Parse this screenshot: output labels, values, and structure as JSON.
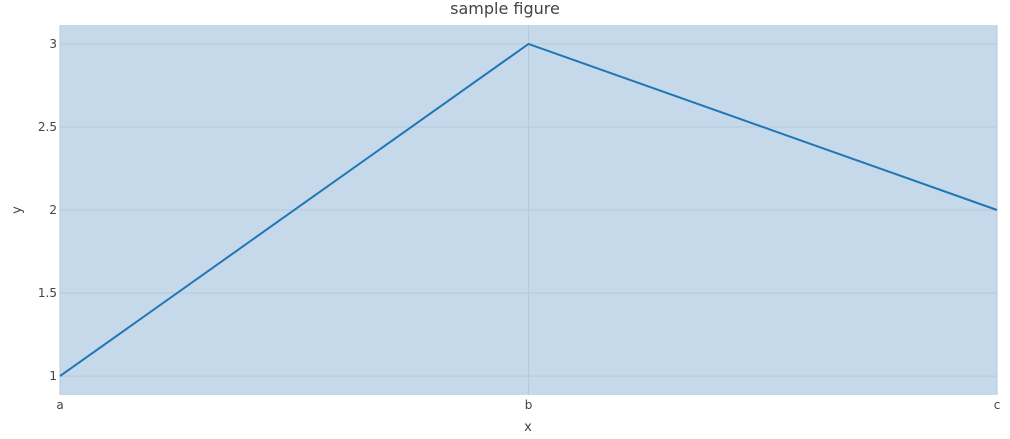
{
  "chart_data": {
    "type": "line",
    "title": "sample figure",
    "xlabel": "x",
    "ylabel": "y",
    "categories": [
      "a",
      "b",
      "c"
    ],
    "series": [
      {
        "values": [
          1,
          3,
          2
        ]
      }
    ],
    "ylim": [
      0.886,
      3.114
    ],
    "yticks": [
      1,
      1.5,
      2,
      2.5,
      3
    ],
    "ytick_labels": [
      "1",
      "1.5",
      "2",
      "2.5",
      "3"
    ],
    "grid": true,
    "colors": {
      "plot_bg": "#c6d9eb",
      "line": "#1f77b4",
      "grid": "#b5c9dc"
    }
  }
}
